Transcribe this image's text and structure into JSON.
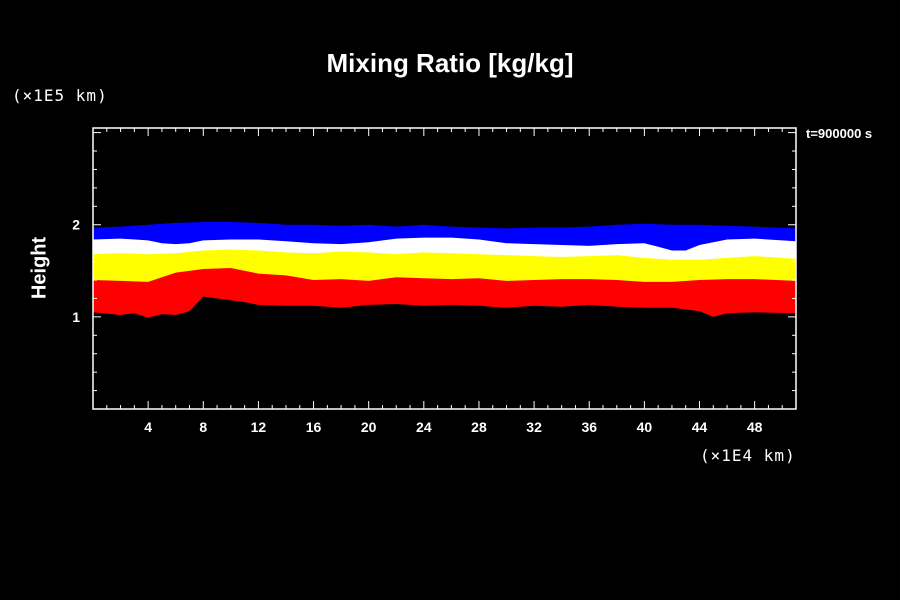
{
  "chart_data": {
    "type": "heatmap",
    "title": "Mixing Ratio [kg/kg]",
    "ylabel": "Height",
    "xlabel": "",
    "x_unit_label": "(×1E4 km)",
    "y_unit_label": "(×1E5 km)",
    "time_label": "t=900000 s",
    "xlim": [
      0,
      51
    ],
    "ylim": [
      0,
      3.05
    ],
    "x_ticks": [
      4,
      8,
      12,
      16,
      20,
      24,
      28,
      32,
      36,
      40,
      44,
      48
    ],
    "x_tick_labels": [
      "4",
      "8",
      "12",
      "16",
      "20",
      "24",
      "28",
      "32",
      "36",
      "40",
      "44",
      "48"
    ],
    "y_ticks": [
      1,
      2
    ],
    "y_tick_labels": [
      "1",
      "2"
    ],
    "bands": [
      {
        "color": "#0000ff",
        "top": [
          [
            0,
            1.97
          ],
          [
            2,
            1.98
          ],
          [
            4,
            2.0
          ],
          [
            6,
            2.02
          ],
          [
            8,
            2.03
          ],
          [
            10,
            2.03
          ],
          [
            12,
            2.02
          ],
          [
            14,
            2.0
          ],
          [
            16,
            2.0
          ],
          [
            18,
            1.99
          ],
          [
            20,
            2.0
          ],
          [
            22,
            1.98
          ],
          [
            24,
            2.0
          ],
          [
            26,
            1.98
          ],
          [
            28,
            1.97
          ],
          [
            30,
            1.96
          ],
          [
            32,
            1.97
          ],
          [
            34,
            1.97
          ],
          [
            36,
            1.98
          ],
          [
            38,
            2.0
          ],
          [
            40,
            2.01
          ],
          [
            42,
            2.0
          ],
          [
            44,
            2.0
          ],
          [
            46,
            1.99
          ],
          [
            48,
            1.98
          ],
          [
            51,
            1.96
          ]
        ]
      },
      {
        "color": "#ffffff",
        "top": [
          [
            0,
            1.84
          ],
          [
            2,
            1.85
          ],
          [
            4,
            1.83
          ],
          [
            5,
            1.8
          ],
          [
            6,
            1.79
          ],
          [
            7,
            1.8
          ],
          [
            8,
            1.83
          ],
          [
            10,
            1.84
          ],
          [
            12,
            1.84
          ],
          [
            14,
            1.82
          ],
          [
            16,
            1.8
          ],
          [
            18,
            1.79
          ],
          [
            20,
            1.81
          ],
          [
            22,
            1.85
          ],
          [
            24,
            1.86
          ],
          [
            26,
            1.86
          ],
          [
            28,
            1.84
          ],
          [
            30,
            1.8
          ],
          [
            32,
            1.79
          ],
          [
            34,
            1.78
          ],
          [
            36,
            1.77
          ],
          [
            38,
            1.79
          ],
          [
            40,
            1.8
          ],
          [
            41,
            1.76
          ],
          [
            42,
            1.72
          ],
          [
            43,
            1.72
          ],
          [
            44,
            1.78
          ],
          [
            46,
            1.84
          ],
          [
            48,
            1.85
          ],
          [
            51,
            1.82
          ]
        ]
      },
      {
        "color": "#ffff00",
        "top": [
          [
            0,
            1.68
          ],
          [
            2,
            1.69
          ],
          [
            4,
            1.68
          ],
          [
            6,
            1.69
          ],
          [
            8,
            1.72
          ],
          [
            10,
            1.73
          ],
          [
            12,
            1.72
          ],
          [
            14,
            1.7
          ],
          [
            16,
            1.69
          ],
          [
            18,
            1.71
          ],
          [
            20,
            1.7
          ],
          [
            22,
            1.68
          ],
          [
            24,
            1.7
          ],
          [
            26,
            1.69
          ],
          [
            28,
            1.68
          ],
          [
            30,
            1.67
          ],
          [
            32,
            1.66
          ],
          [
            34,
            1.65
          ],
          [
            36,
            1.66
          ],
          [
            38,
            1.67
          ],
          [
            40,
            1.64
          ],
          [
            42,
            1.62
          ],
          [
            44,
            1.62
          ],
          [
            46,
            1.64
          ],
          [
            48,
            1.66
          ],
          [
            51,
            1.63
          ]
        ]
      },
      {
        "color": "#ff0000",
        "top": [
          [
            0,
            1.4
          ],
          [
            2,
            1.39
          ],
          [
            4,
            1.38
          ],
          [
            6,
            1.48
          ],
          [
            8,
            1.52
          ],
          [
            10,
            1.53
          ],
          [
            12,
            1.47
          ],
          [
            14,
            1.45
          ],
          [
            16,
            1.4
          ],
          [
            18,
            1.41
          ],
          [
            20,
            1.39
          ],
          [
            22,
            1.43
          ],
          [
            24,
            1.42
          ],
          [
            26,
            1.41
          ],
          [
            28,
            1.42
          ],
          [
            30,
            1.39
          ],
          [
            32,
            1.4
          ],
          [
            34,
            1.41
          ],
          [
            36,
            1.41
          ],
          [
            38,
            1.4
          ],
          [
            40,
            1.38
          ],
          [
            42,
            1.38
          ],
          [
            44,
            1.4
          ],
          [
            46,
            1.41
          ],
          [
            48,
            1.41
          ],
          [
            51,
            1.39
          ]
        ]
      },
      {
        "color": "#000000",
        "top": [
          [
            0,
            1.05
          ],
          [
            2,
            1.02
          ],
          [
            3,
            1.04
          ],
          [
            4,
            0.99
          ],
          [
            5,
            1.03
          ],
          [
            6,
            1.02
          ],
          [
            7,
            1.06
          ],
          [
            8,
            1.22
          ],
          [
            10,
            1.18
          ],
          [
            11,
            1.16
          ],
          [
            12,
            1.13
          ],
          [
            14,
            1.12
          ],
          [
            16,
            1.12
          ],
          [
            18,
            1.1
          ],
          [
            20,
            1.13
          ],
          [
            22,
            1.14
          ],
          [
            24,
            1.12
          ],
          [
            26,
            1.13
          ],
          [
            28,
            1.12
          ],
          [
            30,
            1.1
          ],
          [
            32,
            1.12
          ],
          [
            34,
            1.11
          ],
          [
            36,
            1.13
          ],
          [
            38,
            1.11
          ],
          [
            40,
            1.1
          ],
          [
            42,
            1.1
          ],
          [
            44,
            1.06
          ],
          [
            45,
            1.0
          ],
          [
            46,
            1.04
          ],
          [
            48,
            1.05
          ],
          [
            51,
            1.04
          ]
        ]
      }
    ]
  }
}
